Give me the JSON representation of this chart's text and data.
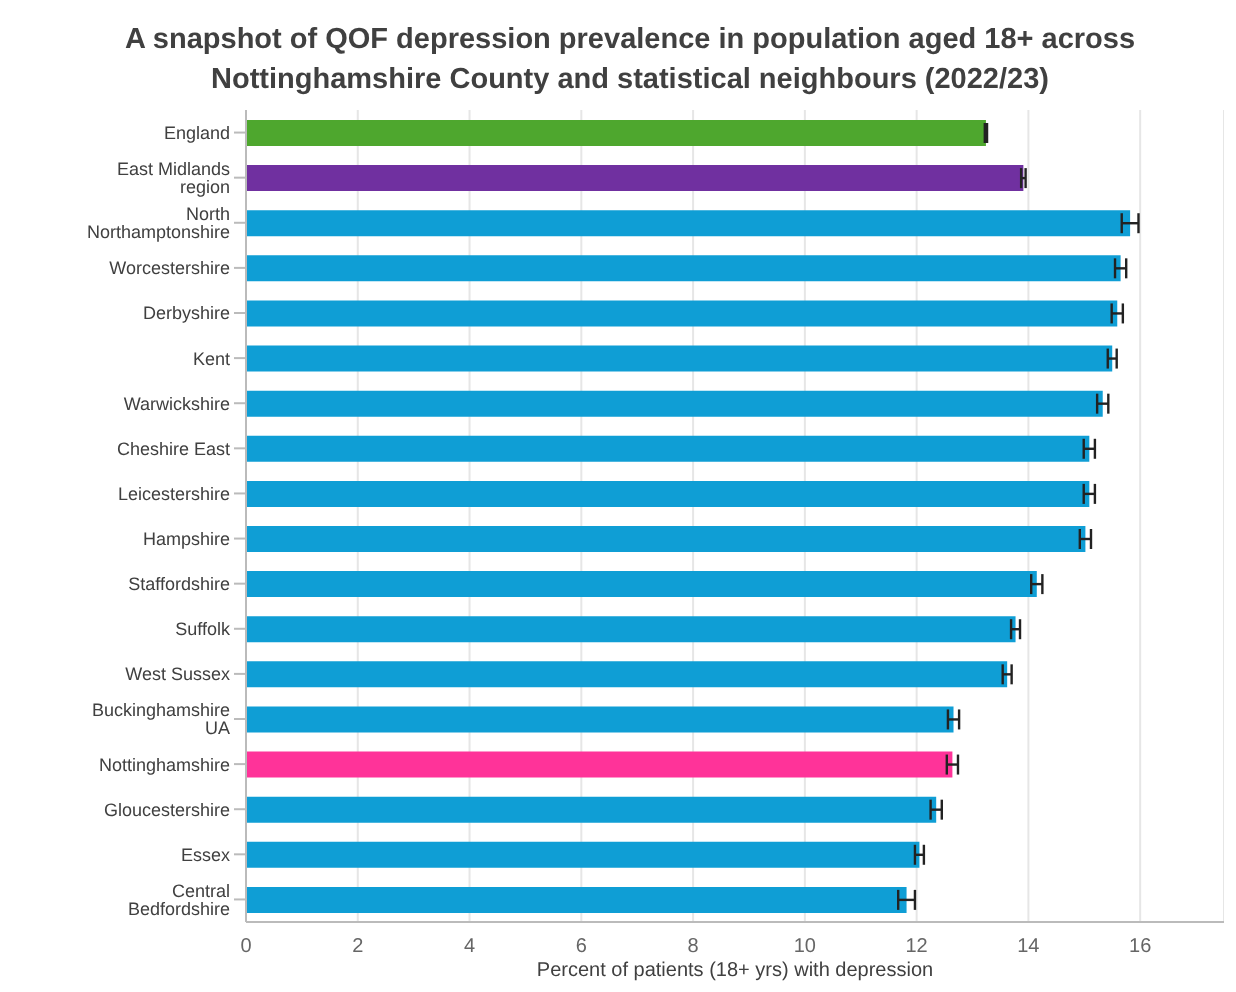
{
  "chart_data": {
    "type": "bar",
    "orientation": "horizontal",
    "title": "A snapshot of QOF depression prevalence in population aged 18+ across Nottinghamshire County and statistical neighbours (2022/23)",
    "xlabel": "Percent of patients (18+ yrs) with depression",
    "categories": [
      "England",
      "East Midlands region",
      "North Northamptonshire",
      "Worcestershire",
      "Derbyshire",
      "Kent",
      "Warwickshire",
      "Cheshire East",
      "Leicestershire",
      "Hampshire",
      "Staffordshire",
      "Suffolk",
      "West Sussex",
      "Buckinghamshire UA",
      "Nottinghamshire",
      "Gloucestershire",
      "Essex",
      "Central Bedfordshire"
    ],
    "values": [
      13.24,
      13.91,
      15.82,
      15.65,
      15.59,
      15.5,
      15.33,
      15.09,
      15.09,
      15.02,
      14.15,
      13.77,
      13.62,
      12.66,
      12.64,
      12.35,
      12.05,
      11.82
    ],
    "errors": [
      0.02,
      0.04,
      0.15,
      0.1,
      0.1,
      0.08,
      0.1,
      0.1,
      0.1,
      0.1,
      0.1,
      0.08,
      0.08,
      0.1,
      0.1,
      0.1,
      0.08,
      0.15
    ],
    "colors": [
      "#4ea72e",
      "#7030a0",
      "#0f9ed5",
      "#0f9ed5",
      "#0f9ed5",
      "#0f9ed5",
      "#0f9ed5",
      "#0f9ed5",
      "#0f9ed5",
      "#0f9ed5",
      "#0f9ed5",
      "#0f9ed5",
      "#0f9ed5",
      "#0f9ed5",
      "#ff3399",
      "#0f9ed5",
      "#0f9ed5",
      "#0f9ed5"
    ],
    "xlim": [
      0,
      17.5
    ],
    "xticks": [
      0,
      2,
      4,
      6,
      8,
      10,
      12,
      14,
      16
    ],
    "grid": "x",
    "legend": false
  }
}
